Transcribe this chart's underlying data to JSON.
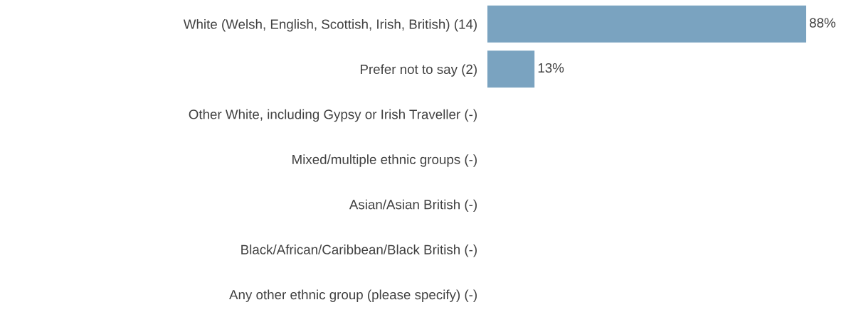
{
  "chart_data": {
    "type": "bar",
    "orientation": "horizontal",
    "categories": [
      "White (Welsh, English, Scottish, Irish, British) (14)",
      "Prefer not to say (2)",
      "Other White, including Gypsy or Irish Traveller (-)",
      "Mixed/multiple ethnic groups (-)",
      "Asian/Asian British (-)",
      "Black/African/Caribbean/Black British (-)",
      "Any other ethnic group (please specify) (-)"
    ],
    "values": [
      88,
      13,
      null,
      null,
      null,
      null,
      null
    ],
    "value_labels": [
      "88%",
      "13%",
      null,
      null,
      null,
      null,
      null
    ],
    "color": "#7aa3c0",
    "tick_labels": "y",
    "grid": false,
    "legend": false
  }
}
